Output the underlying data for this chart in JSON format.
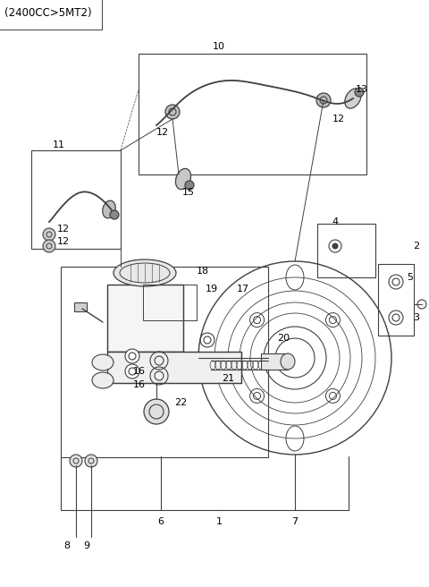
{
  "title": "(2400CC>5MT2)",
  "bg_color": "#ffffff",
  "lc": "#404040",
  "fig_width": 4.8,
  "fig_height": 6.56,
  "dpi": 100
}
